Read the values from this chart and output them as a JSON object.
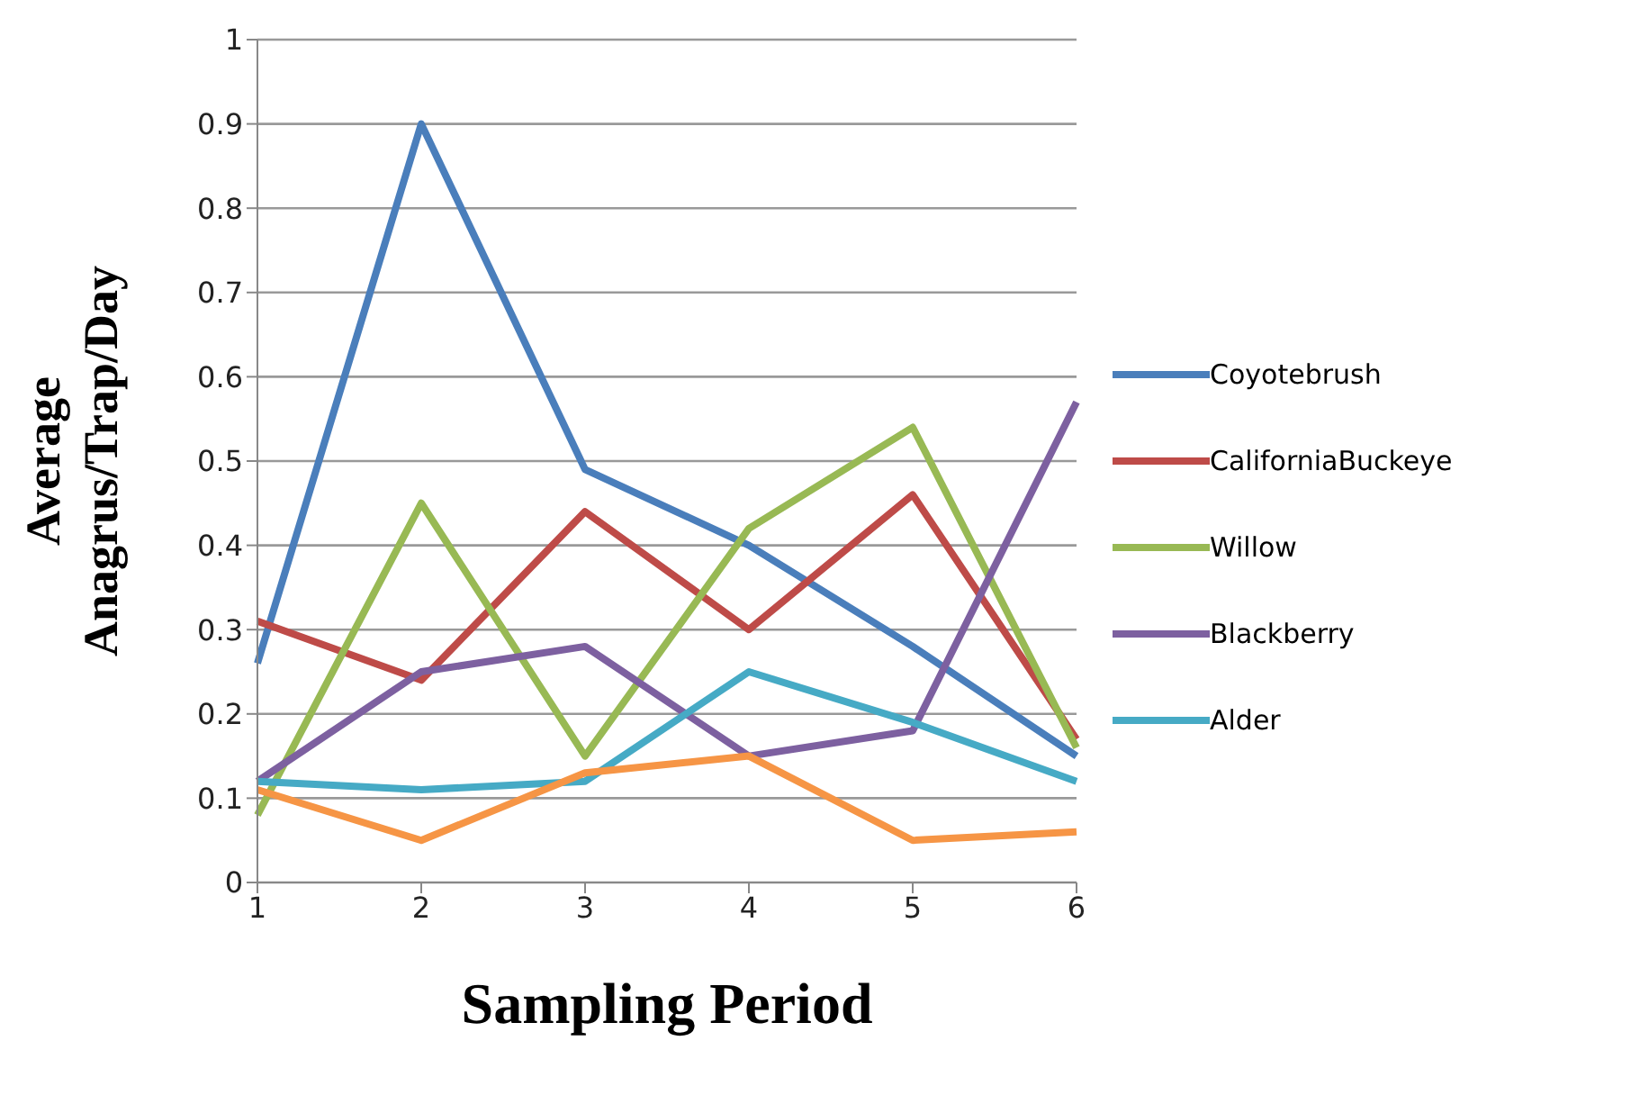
{
  "chart_data": {
    "type": "line",
    "xlabel": "Sampling Period",
    "ylabel": "Average Anagrus/Trap/Day",
    "categories": [
      "1",
      "2",
      "3",
      "4",
      "5",
      "6"
    ],
    "series": [
      {
        "name": "Coyotebrush",
        "color": "#4a7ebb",
        "values": [
          0.26,
          0.9,
          0.49,
          0.4,
          0.28,
          0.15
        ]
      },
      {
        "name": "CaliforniaBuckeye",
        "color": "#be4b48",
        "values": [
          0.31,
          0.24,
          0.44,
          0.3,
          0.46,
          0.17
        ]
      },
      {
        "name": "Willow",
        "color": "#98b954",
        "values": [
          0.08,
          0.45,
          0.15,
          0.42,
          0.54,
          0.16
        ]
      },
      {
        "name": "Blackberry",
        "color": "#7d60a0",
        "values": [
          0.12,
          0.25,
          0.28,
          0.15,
          0.18,
          0.57
        ]
      },
      {
        "name": "Alder",
        "color": "#46aac5",
        "values": [
          0.12,
          0.11,
          0.12,
          0.25,
          0.19,
          0.12
        ]
      },
      {
        "color": "#f69545",
        "values": [
          0.11,
          0.05,
          0.13,
          0.15,
          0.05,
          0.06
        ]
      }
    ],
    "ylim": [
      0,
      1
    ],
    "yticks": [
      0,
      0.1,
      0.2,
      0.3,
      0.4,
      0.5,
      0.6,
      0.7,
      0.8,
      0.9,
      1
    ],
    "grid": "y",
    "legend": "right",
    "marker": "none",
    "line_style": "solid"
  }
}
